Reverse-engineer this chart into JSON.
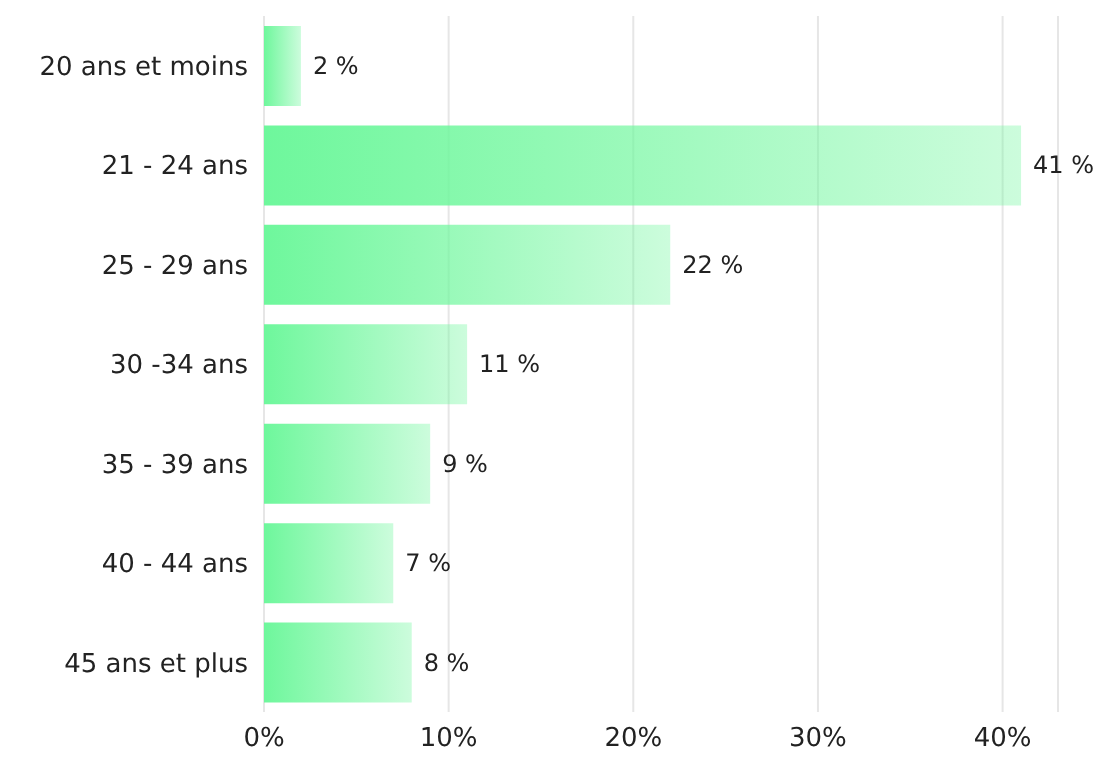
{
  "chart_data": {
    "type": "bar",
    "orientation": "horizontal",
    "categories": [
      "20 ans et moins",
      "21 - 24 ans",
      "25 - 29 ans",
      "30 -34 ans",
      "35 - 39 ans",
      "40 - 44 ans",
      "45 ans et plus"
    ],
    "values": [
      2,
      41,
      22,
      11,
      9,
      7,
      8
    ],
    "value_labels": [
      "2 %",
      "41 %",
      "22 %",
      "11 %",
      "9 %",
      "7 %",
      "8 %"
    ],
    "color": "#6ef79c",
    "xlim": [
      0,
      43
    ],
    "xticks": [
      {
        "value": 0,
        "label": "0%"
      },
      {
        "value": 10,
        "label": "10%"
      },
      {
        "value": 20,
        "label": "20%"
      },
      {
        "value": 30,
        "label": "30%"
      },
      {
        "value": 40,
        "label": "40%"
      }
    ],
    "grid": "x"
  }
}
